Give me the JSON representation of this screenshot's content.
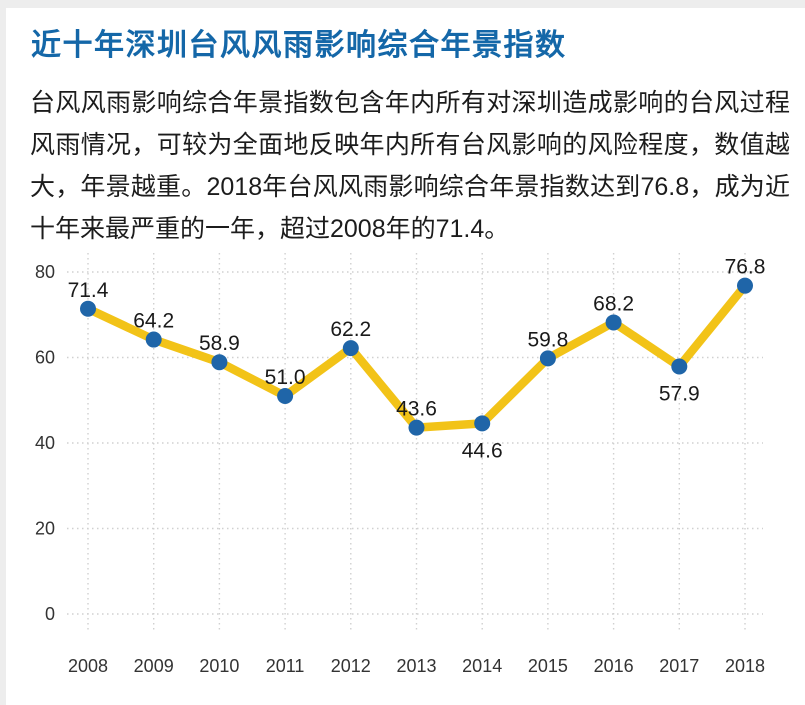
{
  "page": {
    "title": "近十年深圳台风风雨影响综合年景指数",
    "description": "台风风雨影响综合年景指数包含年内所有对深圳造成影响的台风过程风雨情况，可较为全面地反映年内所有台风影响的风险程度，数值越大，年景越重。2018年台风风雨影响综合年景指数达到76.8，成为近十年来最严重的一年，超过2008年的71.4。"
  },
  "colors": {
    "title_blue": "#1467a8",
    "line_yellow": "#f2c318",
    "point_blue": "#1f65a8",
    "grid_gray": "#d0d0d0",
    "label_text": "#1a1a1a",
    "axis_text": "#333333"
  },
  "chart_data": {
    "type": "line",
    "title": "近十年深圳台风风雨影响综合年景指数",
    "categories": [
      "2008",
      "2009",
      "2010",
      "2011",
      "2012",
      "2013",
      "2014",
      "2015",
      "2016",
      "2017",
      "2018"
    ],
    "series": [
      {
        "name": "台风风雨影响综合年景指数",
        "values": [
          71.4,
          64.2,
          58.9,
          51.0,
          62.2,
          43.6,
          44.6,
          59.8,
          68.2,
          57.9,
          76.8
        ]
      }
    ],
    "value_labels": [
      "71.4",
      "64.2",
      "58.9",
      "51.0",
      "62.2",
      "43.6",
      "44.6",
      "59.8",
      "68.2",
      "57.9",
      "76.8"
    ],
    "label_positions": [
      "above",
      "above",
      "above",
      "above",
      "above",
      "above",
      "below",
      "above",
      "above",
      "below",
      "above"
    ],
    "xlabel": "",
    "ylabel": "",
    "yticks": [
      0,
      20,
      40,
      60,
      80
    ],
    "ylim": [
      0,
      85
    ],
    "grid": "dotted",
    "legend": "none"
  }
}
